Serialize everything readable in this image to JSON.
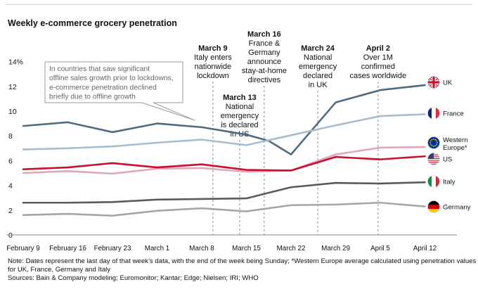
{
  "title": "Weekly e-commerce grocery penetration",
  "chart_data": {
    "type": "line",
    "title": "Weekly e-commerce grocery penetration",
    "xlabel": "",
    "ylabel": "",
    "y_unit": "%",
    "ylim": [
      0,
      14
    ],
    "yticks": [
      0,
      2,
      4,
      6,
      8,
      10,
      12,
      14
    ],
    "ytick_labels": [
      "0",
      "2",
      "4",
      "6",
      "8",
      "10",
      "12",
      "14%"
    ],
    "x": [
      "February 9",
      "February 16",
      "February 23",
      "March 1",
      "March 8",
      "March 15",
      "March 22",
      "March 29",
      "April 5",
      "April 12"
    ],
    "grid": false,
    "legend_placement": "right, labels at line ends with flag icons",
    "series": [
      {
        "name": "UK",
        "color": "#4f6b84",
        "flag": "uk-flag",
        "values": [
          8.8,
          9.1,
          8.3,
          9.0,
          8.7,
          8.1,
          6.5,
          10.7,
          11.7,
          12.1
        ],
        "extra_points": [
          [
            5.5,
            7.6
          ]
        ]
      },
      {
        "name": "France",
        "color": "#a8bccb",
        "flag": "france-flag",
        "values": [
          6.9,
          7.0,
          7.15,
          7.45,
          7.7,
          7.25,
          8.05,
          8.85,
          9.6,
          9.75
        ]
      },
      {
        "name": "Western Europe*",
        "color": "#dfa6bd",
        "flag": "eu-flag",
        "values": [
          5.0,
          5.15,
          4.95,
          5.35,
          5.4,
          5.1,
          5.2,
          6.5,
          7.05,
          7.1
        ]
      },
      {
        "name": "US",
        "color": "#c8102e",
        "flag": "us-flag",
        "values": [
          5.3,
          5.45,
          5.8,
          5.45,
          5.7,
          5.25,
          5.2,
          6.3,
          6.1,
          6.35
        ]
      },
      {
        "name": "Italy",
        "color": "#5a5a5a",
        "flag": "italy-flag",
        "values": [
          2.6,
          2.6,
          2.65,
          2.85,
          2.9,
          2.95,
          3.85,
          4.2,
          4.15,
          4.25
        ]
      },
      {
        "name": "Germany",
        "color": "#a6a6a6",
        "flag": "germany-flag",
        "values": [
          1.6,
          1.7,
          1.55,
          1.95,
          2.15,
          1.9,
          2.4,
          2.45,
          2.6,
          2.3
        ]
      }
    ],
    "events": [
      {
        "x": 4.25,
        "lines": [
          "March 9",
          "Italy enters",
          "nationwide",
          "lockdown"
        ]
      },
      {
        "x": 4.85,
        "lines": [
          "March 13",
          "National",
          "emergency",
          "is declared",
          "in US"
        ]
      },
      {
        "x": 5.4,
        "lines": [
          "March 16",
          "France &",
          "Germany",
          "announce",
          "stay-at-home",
          "directives"
        ]
      },
      {
        "x": 6.6,
        "lines": [
          "March 24",
          "National",
          "emergency",
          "declared",
          "in UK"
        ]
      },
      {
        "x": 7.95,
        "lines": [
          "April 2",
          "Over 1M",
          "confirmed",
          "cases worldwide"
        ]
      }
    ],
    "callout": {
      "lines": [
        "In countries that saw significant",
        "offline sales growth prior to lockdowns,",
        "e-commerce penetration declined",
        "briefly due to offline growth"
      ],
      "pointer_to": [
        3.85,
        9.25
      ]
    }
  },
  "notes": {
    "line1": "Note: Dates represent the last day of that week’s data, with the end of the week being Sunday; *Western Europe average calculated using penetration values",
    "line2": "for UK, France, Germany and Italy",
    "line3": "Sources: Bain & Company modeling; Euromonitor; Kantar; Edge; Nielsen; IRI; WHO"
  }
}
